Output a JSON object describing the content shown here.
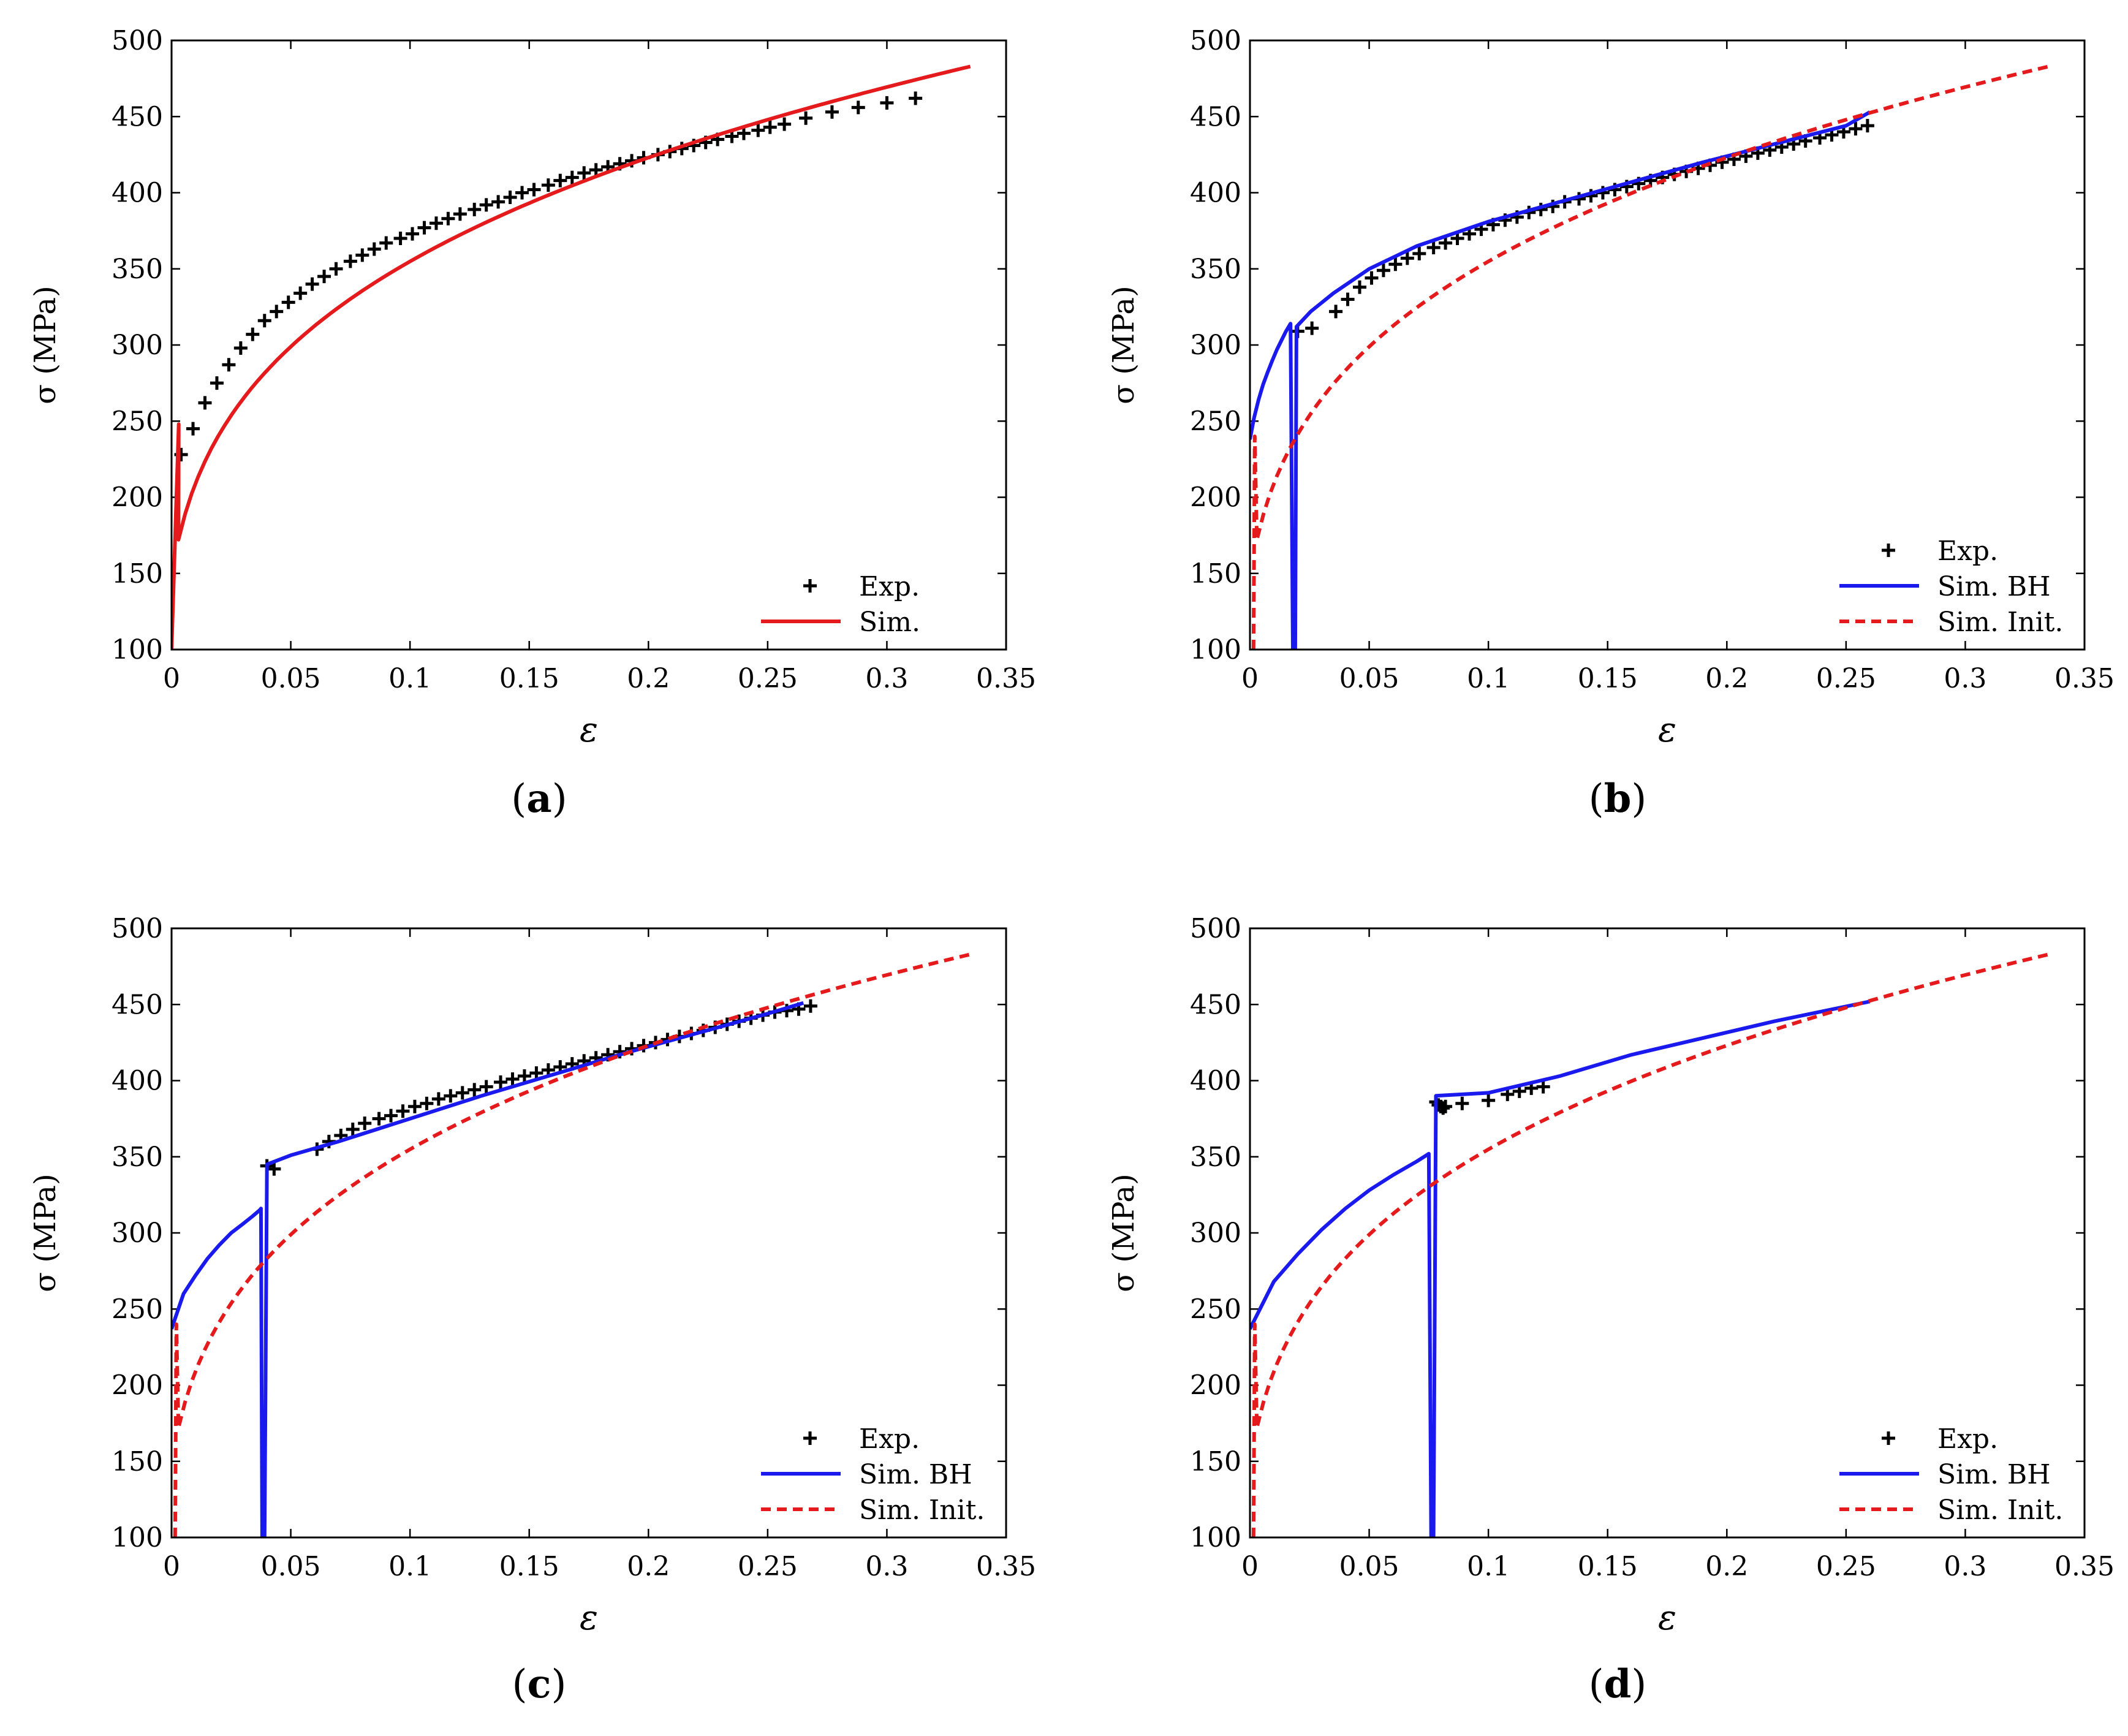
{
  "colors": {
    "exp": "#000000",
    "sim": "#e41a1c",
    "sim_bh": "#1a1aee",
    "sim_init": "#e41a1c"
  },
  "chart_data": [
    {
      "id": "a",
      "caption_letter": "a",
      "type": "line",
      "xlabel": "ε",
      "ylabel": "σ (MPa)",
      "xlim": [
        0,
        0.35
      ],
      "ylim": [
        100,
        500
      ],
      "xticks": [
        "0",
        "0.05",
        "0.1",
        "0.15",
        "0.2",
        "0.25",
        "0.3",
        "0.35"
      ],
      "yticks": [
        "100",
        "150",
        "200",
        "250",
        "300",
        "350",
        "400",
        "450",
        "500"
      ],
      "legend_position": "bottom-right",
      "series": [
        {
          "name": "Exp.",
          "kind": "markers",
          "color_key": "exp",
          "x": [
            0.004,
            0.009,
            0.014,
            0.019,
            0.024,
            0.029,
            0.034,
            0.039,
            0.044,
            0.049,
            0.054,
            0.059,
            0.064,
            0.069,
            0.075,
            0.08,
            0.085,
            0.09,
            0.096,
            0.101,
            0.106,
            0.111,
            0.116,
            0.121,
            0.127,
            0.132,
            0.137,
            0.142,
            0.147,
            0.152,
            0.158,
            0.163,
            0.168,
            0.173,
            0.178,
            0.183,
            0.188,
            0.193,
            0.198,
            0.204,
            0.209,
            0.214,
            0.219,
            0.224,
            0.229,
            0.235,
            0.24,
            0.246,
            0.251,
            0.257,
            0.266,
            0.277,
            0.288,
            0.3,
            0.312
          ],
          "y": [
            228,
            245,
            262,
            275,
            287,
            298,
            307,
            316,
            322,
            328,
            334,
            340,
            345,
            350,
            355,
            359,
            363,
            367,
            370,
            373,
            377,
            380,
            383,
            386,
            389,
            392,
            394,
            397,
            400,
            402,
            405,
            408,
            410,
            413,
            415,
            417,
            419,
            421,
            423,
            425,
            427,
            429,
            431,
            433,
            435,
            437,
            439,
            441,
            443,
            445,
            449,
            453,
            456,
            459,
            462
          ]
        },
        {
          "name": "Sim.",
          "kind": "line",
          "dash": "solid",
          "color_key": "sim",
          "x": [
            0,
            0.003
          ],
          "y": [
            100,
            248
          ],
          "curve": {
            "eps0": 0.0029,
            "eps_end": 0.335,
            "k": 640,
            "n": 0.26
          }
        }
      ]
    },
    {
      "id": "b",
      "caption_letter": "b",
      "type": "line",
      "xlabel": "ε",
      "ylabel": "σ (MPa)",
      "xlim": [
        0,
        0.35
      ],
      "ylim": [
        100,
        500
      ],
      "xticks": [
        "0",
        "0.05",
        "0.1",
        "0.15",
        "0.2",
        "0.25",
        "0.3",
        "0.35"
      ],
      "yticks": [
        "100",
        "150",
        "200",
        "250",
        "300",
        "350",
        "400",
        "450",
        "500"
      ],
      "legend_position": "bottom-right",
      "series": [
        {
          "name": "Exp.",
          "kind": "markers",
          "color_key": "exp",
          "x": [
            0.02,
            0.026,
            0.036,
            0.041,
            0.046,
            0.051,
            0.056,
            0.061,
            0.066,
            0.071,
            0.077,
            0.082,
            0.087,
            0.092,
            0.097,
            0.102,
            0.107,
            0.112,
            0.117,
            0.122,
            0.127,
            0.132,
            0.138,
            0.143,
            0.148,
            0.153,
            0.158,
            0.163,
            0.168,
            0.173,
            0.178,
            0.183,
            0.188,
            0.193,
            0.198,
            0.203,
            0.208,
            0.213,
            0.218,
            0.223,
            0.228,
            0.233,
            0.239,
            0.244,
            0.249,
            0.254,
            0.259
          ],
          "y": [
            309,
            311,
            322,
            330,
            338,
            344,
            349,
            353,
            357,
            360,
            364,
            367,
            370,
            373,
            376,
            379,
            382,
            384,
            387,
            389,
            391,
            394,
            396,
            398,
            400,
            402,
            404,
            406,
            408,
            410,
            412,
            414,
            416,
            418,
            420,
            422,
            424,
            426,
            428,
            430,
            432,
            434,
            436,
            438,
            440,
            442,
            444
          ]
        },
        {
          "name": "Sim. BH",
          "kind": "line",
          "dash": "solid",
          "color_key": "sim_bh",
          "x": [
            0,
            0.0017,
            0.0036,
            0.0055,
            0.0074,
            0.0094,
            0.0113,
            0.0132,
            0.0151,
            0.017,
            0.018,
            0.019,
            0.0195,
            0.0255,
            0.035,
            0.05,
            0.07,
            0.1,
            0.13,
            0.16,
            0.19,
            0.22,
            0.25,
            0.26
          ],
          "y": [
            238,
            252,
            264,
            274,
            282,
            290,
            297,
            303,
            309,
            314,
            100,
            100,
            312,
            322,
            334,
            350,
            365,
            381,
            394,
            407,
            420,
            432,
            444,
            453
          ]
        },
        {
          "name": "Sim. Init.",
          "kind": "line",
          "dash": "dashed",
          "color_key": "sim_init",
          "x": [
            0.0015,
            0.002
          ],
          "y": [
            100,
            240
          ],
          "curve": {
            "eps0": 0.0029,
            "eps_end": 0.335,
            "k": 640,
            "n": 0.26
          }
        }
      ]
    },
    {
      "id": "c",
      "caption_letter": "c",
      "type": "line",
      "xlabel": "ε",
      "ylabel": "σ (MPa)",
      "xlim": [
        0,
        0.35
      ],
      "ylim": [
        100,
        500
      ],
      "xticks": [
        "0",
        "0.05",
        "0.1",
        "0.15",
        "0.2",
        "0.25",
        "0.3",
        "0.35"
      ],
      "yticks": [
        "100",
        "150",
        "200",
        "250",
        "300",
        "350",
        "400",
        "450",
        "500"
      ],
      "legend_position": "bottom-right",
      "series": [
        {
          "name": "Exp.",
          "kind": "markers",
          "color_key": "exp",
          "x": [
            0.04,
            0.043,
            0.061,
            0.066,
            0.071,
            0.076,
            0.081,
            0.087,
            0.092,
            0.097,
            0.102,
            0.107,
            0.112,
            0.117,
            0.122,
            0.127,
            0.132,
            0.138,
            0.143,
            0.148,
            0.153,
            0.158,
            0.163,
            0.168,
            0.173,
            0.178,
            0.183,
            0.188,
            0.193,
            0.198,
            0.203,
            0.208,
            0.213,
            0.218,
            0.223,
            0.228,
            0.233,
            0.238,
            0.243,
            0.248,
            0.253,
            0.258,
            0.263,
            0.268
          ],
          "y": [
            344,
            342,
            355,
            360,
            364,
            368,
            372,
            375,
            377,
            380,
            383,
            385,
            388,
            390,
            392,
            394,
            396,
            399,
            401,
            403,
            405,
            407,
            409,
            411,
            413,
            415,
            417,
            419,
            421,
            423,
            425,
            427,
            429,
            431,
            433,
            435,
            437,
            439,
            441,
            443,
            445,
            446,
            447,
            449
          ]
        },
        {
          "name": "Sim. BH",
          "kind": "line",
          "dash": "solid",
          "color_key": "sim_bh",
          "x": [
            0,
            0.005,
            0.01,
            0.015,
            0.02,
            0.025,
            0.03,
            0.034,
            0.037,
            0.0375,
            0.038,
            0.039,
            0.04,
            0.05,
            0.07,
            0.1,
            0.13,
            0.16,
            0.19,
            0.22,
            0.25,
            0.265
          ],
          "y": [
            237,
            260,
            272,
            283,
            292,
            300,
            306,
            311,
            315,
            316,
            100,
            100,
            345,
            351,
            360,
            375,
            390,
            404,
            418,
            431,
            444,
            451
          ]
        },
        {
          "name": "Sim. Init.",
          "kind": "line",
          "dash": "dashed",
          "color_key": "sim_init",
          "x": [
            0.0015,
            0.002
          ],
          "y": [
            100,
            240
          ],
          "curve": {
            "eps0": 0.0029,
            "eps_end": 0.335,
            "k": 640,
            "n": 0.26
          }
        }
      ]
    },
    {
      "id": "d",
      "caption_letter": "d",
      "type": "line",
      "xlabel": "ε",
      "ylabel": "σ (MPa)",
      "xlim": [
        0,
        0.35
      ],
      "ylim": [
        100,
        500
      ],
      "xticks": [
        "0",
        "0.05",
        "0.1",
        "0.15",
        "0.2",
        "0.25",
        "0.3",
        "0.35"
      ],
      "yticks": [
        "100",
        "150",
        "200",
        "250",
        "300",
        "350",
        "400",
        "450",
        "500"
      ],
      "legend_position": "bottom-right",
      "series": [
        {
          "name": "Exp.",
          "kind": "markers",
          "color_key": "exp",
          "x": [
            0.078,
            0.079,
            0.08,
            0.081,
            0.082,
            0.089,
            0.1,
            0.108,
            0.113,
            0.118,
            0.123
          ],
          "y": [
            386,
            384,
            383,
            382,
            383,
            385,
            387,
            391,
            393,
            395,
            396
          ]
        },
        {
          "name": "Sim. BH",
          "kind": "line",
          "dash": "solid",
          "color_key": "sim_bh",
          "x": [
            0,
            0.01,
            0.02,
            0.03,
            0.04,
            0.05,
            0.06,
            0.07,
            0.075,
            0.076,
            0.077,
            0.078,
            0.1,
            0.13,
            0.16,
            0.19,
            0.22,
            0.26
          ],
          "y": [
            237,
            268,
            286,
            302,
            316,
            328,
            338,
            347,
            352,
            100,
            100,
            390,
            392,
            403,
            417,
            428,
            439,
            452
          ]
        },
        {
          "name": "Sim. Init.",
          "kind": "line",
          "dash": "dashed",
          "color_key": "sim_init",
          "x": [
            0.0015,
            0.002
          ],
          "y": [
            100,
            240
          ],
          "curve": {
            "eps0": 0.0029,
            "eps_end": 0.335,
            "k": 640,
            "n": 0.26
          }
        }
      ]
    }
  ]
}
